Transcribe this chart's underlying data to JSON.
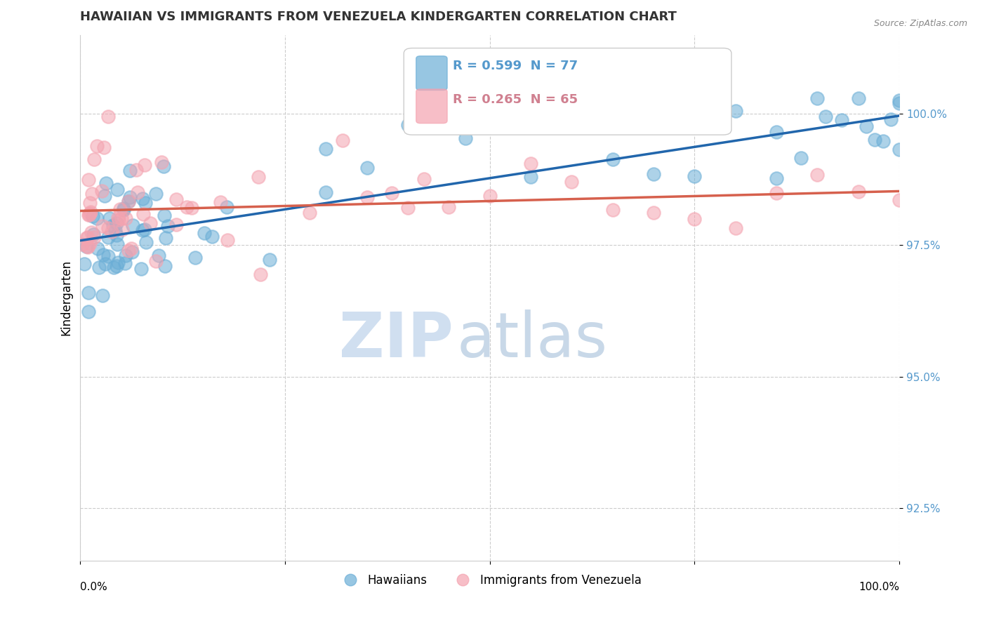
{
  "title": "HAWAIIAN VS IMMIGRANTS FROM VENEZUELA KINDERGARTEN CORRELATION CHART",
  "source_text": "Source: ZipAtlas.com",
  "ylabel": "Kindergarten",
  "y_ticks": [
    92.5,
    95.0,
    97.5,
    100.0
  ],
  "y_tick_labels": [
    "92.5%",
    "95.0%",
    "97.5%",
    "100.0%"
  ],
  "x_range": [
    0.0,
    100.0
  ],
  "y_range": [
    91.0,
    101.5
  ],
  "legend_label_blue": "Hawaiians",
  "legend_label_pink": "Immigrants from Venezuela",
  "R_blue": 0.599,
  "N_blue": 77,
  "R_pink": 0.265,
  "N_pink": 65,
  "blue_color": "#6baed6",
  "pink_color": "#f4a3b0",
  "trendline_blue_color": "#2166ac",
  "trendline_pink_color": "#d6604d",
  "background_color": "#ffffff",
  "watermark_color": "#d0dff0",
  "grid_color": "#cccccc"
}
